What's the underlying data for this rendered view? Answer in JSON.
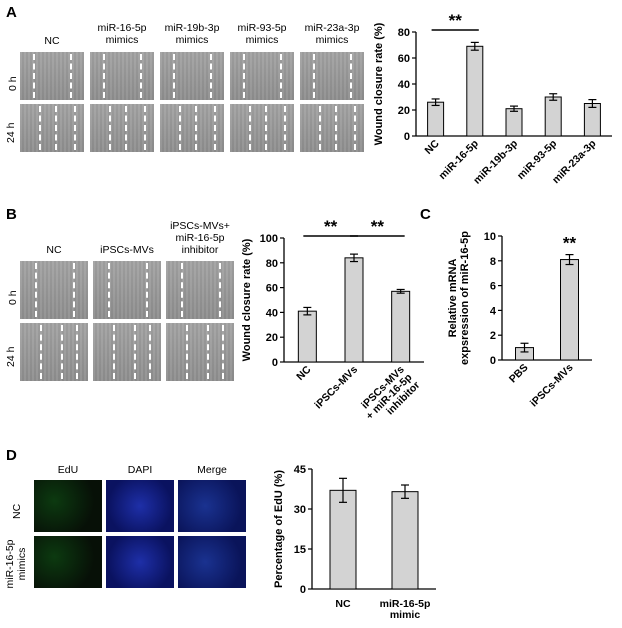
{
  "panel_a": {
    "letter": "A",
    "columns": [
      "NC",
      "miR-16-5p\nmimics",
      "miR-19b-3p\nmimics",
      "miR-93-5p\nmimics",
      "miR-23a-3p\nmimics"
    ],
    "rows": [
      "0 h",
      "24 h"
    ]
  },
  "panel_b": {
    "letter": "B",
    "columns": [
      "NC",
      "iPSCs-MVs",
      "iPSCs-MVs+\nmiR-16-5p\ninhibitor"
    ],
    "rows": [
      "0 h",
      "24 h"
    ]
  },
  "panel_c": {
    "letter": "C"
  },
  "panel_d": {
    "letter": "D",
    "columns": [
      "EdU",
      "DAPI",
      "Merge"
    ],
    "rows": [
      "NC",
      "miR-16-5p\nmimics"
    ]
  },
  "chart_data": [
    {
      "id": "A",
      "type": "bar",
      "categories": [
        "NC",
        "miR-16-5p",
        "miR-19b-3p",
        "miR-93-5p",
        "miR-23a-3p"
      ],
      "values": [
        26,
        69,
        21,
        30,
        25
      ],
      "errors": [
        2.5,
        3,
        2,
        2.5,
        3
      ],
      "ylabel": "Wound closure rate (%)",
      "ylim": [
        0,
        80
      ],
      "yticks": [
        0,
        20,
        40,
        60,
        80
      ],
      "significance": [
        {
          "from": 0,
          "to": 1,
          "label": "**"
        }
      ],
      "bar_color": "#d3d3d3"
    },
    {
      "id": "B",
      "type": "bar",
      "categories": [
        "NC",
        "iPSCs-MVs",
        "iPSCs-MVs\n+ miR-16-5p\ninhibitor"
      ],
      "values": [
        41,
        84,
        57
      ],
      "errors": [
        3,
        3,
        1.5
      ],
      "ylabel": "Wound closure rate (%)",
      "ylim": [
        0,
        100
      ],
      "yticks": [
        0,
        20,
        40,
        60,
        80,
        100
      ],
      "significance": [
        {
          "from": 0,
          "to": 1,
          "label": "**"
        },
        {
          "from": 1,
          "to": 2,
          "label": "**"
        }
      ],
      "bar_color": "#d3d3d3"
    },
    {
      "id": "C",
      "type": "bar",
      "categories": [
        "PBS",
        "iPSCs-MVs"
      ],
      "values": [
        1,
        8.1
      ],
      "errors": [
        0.35,
        0.4
      ],
      "ylabel": "Relative mRNA\nexpsression of miR-16-5p",
      "ylim": [
        0,
        10
      ],
      "yticks": [
        0,
        2,
        4,
        6,
        8,
        10
      ],
      "significance": [
        {
          "on": 1,
          "label": "**"
        }
      ],
      "bar_color": "#d3d3d3"
    },
    {
      "id": "D",
      "type": "bar",
      "categories": [
        "NC",
        "miR-16-5p\nmimic"
      ],
      "values": [
        37,
        36.5
      ],
      "errors": [
        4.5,
        2.5
      ],
      "ylabel": "Percentage of EdU (%)",
      "ylim": [
        0,
        45
      ],
      "yticks": [
        0,
        15,
        30,
        45
      ],
      "bar_color": "#d3d3d3"
    }
  ]
}
